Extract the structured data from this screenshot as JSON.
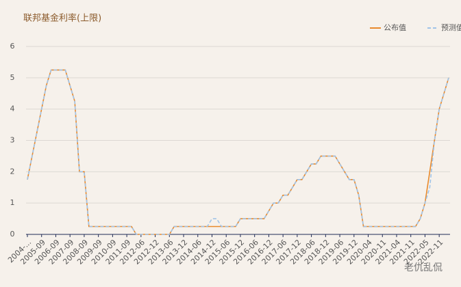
{
  "chart_data": {
    "type": "line",
    "title": "联邦基金利率(上限)",
    "categories": [
      "2004-...",
      null,
      null,
      "2005-09",
      null,
      null,
      "2006-09",
      null,
      null,
      "2007-09",
      null,
      null,
      "2008-09",
      null,
      null,
      "2009-09",
      null,
      null,
      "2010-09",
      null,
      null,
      "2011-09",
      null,
      null,
      "2012-06",
      null,
      null,
      "2012-12",
      null,
      null,
      "2013-06",
      null,
      null,
      "2013-12",
      null,
      null,
      "2014-06",
      null,
      null,
      "2014-12",
      null,
      null,
      "2015-06",
      null,
      null,
      "2015-12",
      null,
      null,
      "2016-06",
      null,
      null,
      "2016-12",
      null,
      null,
      "2017-06",
      null,
      null,
      "2017-12",
      null,
      null,
      "2018-06",
      null,
      null,
      "2018-12",
      null,
      null,
      "2019-06",
      null,
      null,
      "2019-12",
      null,
      null,
      "2020-04",
      null,
      null,
      "2020-11",
      null,
      null,
      "2021-04",
      null,
      null,
      "2021-11",
      null,
      null,
      "2022-05",
      null,
      null,
      "2022-11",
      null,
      null
    ],
    "series": [
      {
        "name": "公布值",
        "color": "#e8892b",
        "dashed": false,
        "values": [
          1.75,
          2.5,
          3.25,
          4.0,
          4.75,
          5.25,
          5.25,
          5.25,
          5.25,
          4.75,
          4.25,
          2.0,
          2.0,
          0.25,
          0.25,
          0.25,
          0.25,
          0.25,
          0.25,
          0.25,
          0.25,
          0.25,
          0.25,
          0,
          0,
          0,
          0,
          0,
          0,
          0,
          0,
          0.25,
          0.25,
          0.25,
          0.25,
          0.25,
          0.25,
          0.25,
          0.25,
          0.25,
          0.25,
          0.25,
          0.25,
          0.25,
          0.25,
          0.5,
          0.5,
          0.5,
          0.5,
          0.5,
          0.5,
          0.75,
          1.0,
          1.0,
          1.25,
          1.25,
          1.5,
          1.75,
          1.75,
          2.0,
          2.25,
          2.25,
          2.5,
          2.5,
          2.5,
          2.5,
          2.25,
          2.0,
          1.75,
          1.75,
          1.25,
          0.25,
          0.25,
          0.25,
          0.25,
          0.25,
          0.25,
          0.25,
          0.25,
          0.25,
          0.25,
          0.25,
          0.25,
          0.5,
          1.0,
          2.0,
          3.0,
          4.0,
          4.5,
          5.0
        ]
      },
      {
        "name": "预测值",
        "color": "#9fc3e8",
        "dashed": true,
        "values": [
          1.75,
          2.5,
          3.25,
          4.0,
          4.75,
          5.25,
          5.25,
          5.25,
          5.25,
          4.75,
          4.25,
          2.0,
          2.0,
          0.25,
          0.25,
          0.25,
          0.25,
          0.25,
          0.25,
          0.25,
          0.25,
          0.25,
          0.25,
          0,
          0,
          0,
          0,
          0,
          0,
          0,
          0,
          0.25,
          0.25,
          0.25,
          0.25,
          0.25,
          0.25,
          0.25,
          0.25,
          0.5,
          0.5,
          0.25,
          0.25,
          0.25,
          0.25,
          0.5,
          0.5,
          0.5,
          0.5,
          0.5,
          0.5,
          0.75,
          1.0,
          1.0,
          1.25,
          1.25,
          1.5,
          1.75,
          1.75,
          2.0,
          2.25,
          2.25,
          2.5,
          2.5,
          2.5,
          2.5,
          2.25,
          2.0,
          1.75,
          1.75,
          1.25,
          0.25,
          0.25,
          0.25,
          0.25,
          0.25,
          0.25,
          0.25,
          0.25,
          0.25,
          0.25,
          0.25,
          0.25,
          0.5,
          1.0,
          1.5,
          3.0,
          4.0,
          4.5,
          5.0
        ]
      }
    ],
    "ylim": [
      0,
      6
    ],
    "yticks": [
      0,
      1,
      2,
      3,
      4,
      5,
      6
    ],
    "grid": true,
    "legend": "top-right",
    "watermark": "老仇乱侃"
  }
}
